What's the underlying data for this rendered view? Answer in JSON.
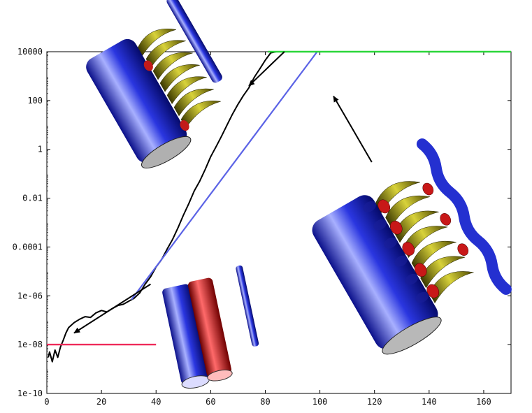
{
  "chart_data": {
    "type": "line",
    "title": "",
    "xlabel": "",
    "ylabel": "",
    "xlim": [
      0,
      170
    ],
    "ylim": [
      1e-10,
      10000
    ],
    "yscale": "log",
    "grid": false,
    "legend": "none",
    "x_ticks": [
      0,
      20,
      40,
      60,
      80,
      100,
      120,
      140,
      160
    ],
    "x_tick_labels": [
      "0",
      "20",
      "40",
      "60",
      "80",
      "100",
      "120",
      "140",
      "160"
    ],
    "y_ticks": [
      1e-10,
      1e-08,
      1e-06,
      0.0001,
      0.01,
      1,
      100,
      10000
    ],
    "y_tick_labels": [
      "1e-10",
      "1e-08",
      "1e-06",
      "0.0001",
      "0.01",
      "1",
      "100",
      "10000"
    ],
    "series": [
      {
        "color": "#000000",
        "points": [
          [
            0.5,
            3e-09
          ],
          [
            1,
            5e-09
          ],
          [
            2,
            2e-09
          ],
          [
            3,
            6e-09
          ],
          [
            4,
            3e-09
          ],
          [
            5,
            8e-09
          ],
          [
            6,
            1.5e-08
          ],
          [
            7,
            3e-08
          ],
          [
            8,
            5e-08
          ],
          [
            10,
            8e-08
          ],
          [
            12,
            1.1e-07
          ],
          [
            14,
            1.4e-07
          ],
          [
            16,
            1.3e-07
          ],
          [
            18,
            2e-07
          ],
          [
            20,
            2.5e-07
          ],
          [
            22,
            2.2e-07
          ],
          [
            24,
            3e-07
          ],
          [
            26,
            4e-07
          ],
          [
            28,
            4.5e-07
          ],
          [
            30,
            6e-07
          ],
          [
            32,
            8e-07
          ],
          [
            34,
            1.3e-06
          ],
          [
            36,
            3e-06
          ],
          [
            38,
            6e-06
          ],
          [
            40,
            1.5e-05
          ],
          [
            42,
            3e-05
          ],
          [
            44,
            8e-05
          ],
          [
            46,
            0.0002
          ],
          [
            48,
            0.0006
          ],
          [
            50,
            0.002
          ],
          [
            52,
            0.006
          ],
          [
            54,
            0.02
          ],
          [
            56,
            0.05
          ],
          [
            58,
            0.15
          ],
          [
            60,
            0.5
          ],
          [
            62,
            1.3
          ],
          [
            64,
            3.5
          ],
          [
            66,
            10
          ],
          [
            68,
            28
          ],
          [
            70,
            70
          ],
          [
            72,
            160
          ],
          [
            74,
            330
          ],
          [
            76,
            900
          ],
          [
            78,
            2000
          ],
          [
            80,
            4500
          ],
          [
            82,
            9000
          ],
          [
            84,
            15000
          ],
          [
            86,
            22000
          ],
          [
            88,
            26000
          ],
          [
            90,
            30000
          ],
          [
            92,
            33000
          ],
          [
            94,
            35000
          ],
          [
            96,
            36000
          ],
          [
            98,
            37000
          ],
          [
            100,
            38000
          ],
          [
            105,
            37500
          ],
          [
            110,
            38500
          ],
          [
            115,
            39000
          ],
          [
            120,
            38000
          ],
          [
            125,
            40000
          ],
          [
            130,
            39500
          ],
          [
            135,
            38500
          ],
          [
            140,
            38000
          ],
          [
            145,
            37500
          ],
          [
            150,
            38500
          ],
          [
            155,
            38000
          ],
          [
            160,
            37500
          ],
          [
            165,
            38000
          ],
          [
            170,
            37500
          ]
        ]
      },
      {
        "color": "#5b63e6",
        "points": [
          [
            31,
            7e-07
          ],
          [
            99,
            10000
          ]
        ]
      },
      {
        "color": "#ef2b5a",
        "points": [
          [
            0,
            1e-08
          ],
          [
            40,
            1e-08
          ]
        ]
      },
      {
        "color": "#2bd63a",
        "points": [
          [
            81,
            37000
          ],
          [
            170,
            37000
          ]
        ]
      }
    ],
    "annotations": [
      {
        "type": "arrow",
        "from": [
          38,
          3e-06
        ],
        "to": [
          10,
          3e-08
        ]
      },
      {
        "type": "arrow",
        "from": [
          87,
          20000
        ],
        "to": [
          74,
          400
        ]
      },
      {
        "type": "arrow",
        "from": [
          119,
          0.3
        ],
        "to": [
          105,
          150
        ]
      }
    ]
  },
  "images": [
    {
      "name": "vortex-tubes-initial-isosurface"
    },
    {
      "name": "vortex-tubes-linear-growth-isosurface"
    },
    {
      "name": "vortex-tubes-saturated-isosurface"
    }
  ]
}
